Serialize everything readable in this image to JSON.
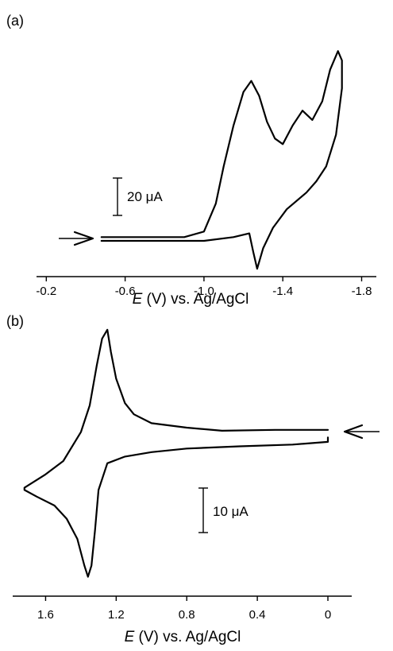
{
  "chart_data": [
    {
      "panel_label": "(a)",
      "type": "line",
      "x_axis": {
        "label_italic": "E",
        "label_rest": " (V)  vs. Ag/AgCl",
        "range": [
          -0.1,
          -1.9
        ],
        "reversed": true,
        "ticks": [
          -0.2,
          -0.6,
          -1.0,
          -1.4,
          -1.8
        ],
        "tick_labels": [
          "-0.2",
          "-0.6",
          "-1.0",
          "-1.4",
          "-1.8"
        ]
      },
      "scale_bar": {
        "value": 20,
        "label": "20 μA"
      },
      "arrow_direction": "right",
      "series": [
        {
          "values_x": [
            -0.48,
            -0.9,
            -1.0,
            -1.06,
            -1.1,
            -1.15,
            -1.2,
            -1.24,
            -1.28,
            -1.32,
            -1.36,
            -1.4,
            -1.45,
            -1.5,
            -1.55,
            -1.6,
            -1.64,
            -1.68,
            -1.7,
            -1.7,
            -1.67,
            -1.62,
            -1.57,
            -1.52,
            -1.42,
            -1.35,
            -1.3,
            -1.27,
            -1.25,
            -1.23,
            -1.15,
            -1.0,
            -0.48
          ],
          "values_y": [
            2,
            2,
            5,
            20,
            40,
            62,
            80,
            86,
            78,
            64,
            55,
            52,
            62,
            70,
            65,
            75,
            92,
            102,
            97,
            82,
            57,
            40,
            32,
            26,
            17,
            7,
            -4,
            -15,
            -6,
            4,
            2,
            0,
            0
          ]
        }
      ]
    },
    {
      "panel_label": "(b)",
      "type": "line",
      "x_axis": {
        "label_italic": "E",
        "label_rest": " (V)  vs. Ag/AgCl",
        "range": [
          1.8,
          -0.15
        ],
        "reversed": true,
        "ticks": [
          1.6,
          1.2,
          0.8,
          0.4,
          0
        ],
        "tick_labels": [
          "1.6",
          "1.2",
          "0.8",
          "0.4",
          "0"
        ]
      },
      "scale_bar": {
        "value": 10,
        "label": "10 μA"
      },
      "arrow_direction": "left",
      "series": [
        {
          "values_x": [
            0.0,
            0.3,
            0.6,
            0.8,
            1.0,
            1.1,
            1.15,
            1.2,
            1.23,
            1.25,
            1.28,
            1.31,
            1.35,
            1.4,
            1.5,
            1.6,
            1.72,
            1.72,
            1.65,
            1.55,
            1.48,
            1.42,
            1.38,
            1.36,
            1.34,
            1.32,
            1.3,
            1.25,
            1.15,
            1.0,
            0.8,
            0.5,
            0.2,
            0.0,
            0.0
          ],
          "values_y": [
            4.5,
            4.5,
            4.3,
            5.0,
            6.0,
            8.0,
            10.5,
            16.0,
            22.0,
            27.0,
            25.0,
            19.0,
            10.0,
            4.0,
            -2.5,
            -5.5,
            -8.5,
            -9.0,
            -10.5,
            -12.5,
            -15.5,
            -20.0,
            -26.0,
            -28.5,
            -26.0,
            -18.0,
            -9.0,
            -3.0,
            -1.5,
            -0.5,
            0.3,
            0.8,
            1.2,
            1.8,
            2.8
          ]
        }
      ]
    }
  ]
}
